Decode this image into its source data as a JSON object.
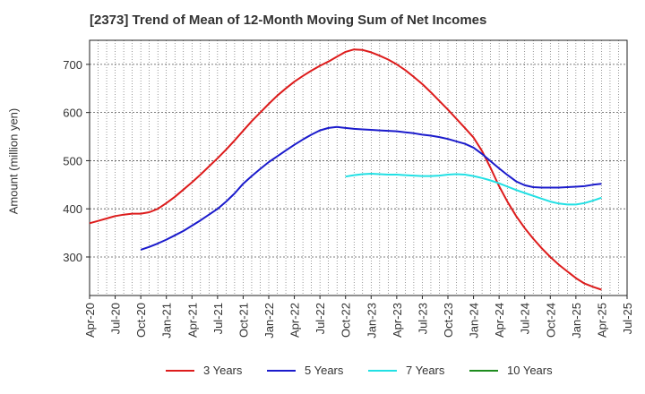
{
  "chart_data": {
    "type": "line",
    "title": "[2373]  Trend of Mean of 12-Month Moving Sum of Net Incomes",
    "ylabel": "Amount (million yen)",
    "xlabel": "",
    "x_ticks": [
      "Apr-20",
      "Jul-20",
      "Oct-20",
      "Jan-21",
      "Apr-21",
      "Jul-21",
      "Oct-21",
      "Jan-22",
      "Apr-22",
      "Jul-22",
      "Oct-22",
      "Jan-23",
      "Apr-23",
      "Jul-23",
      "Oct-23",
      "Jan-24",
      "Apr-24",
      "Jul-24",
      "Oct-24",
      "Jan-25",
      "Apr-25",
      "Jul-25"
    ],
    "y_ticks": [
      300,
      400,
      500,
      600,
      700
    ],
    "ylim": [
      220,
      750
    ],
    "xlim": [
      "Apr-20",
      "Jul-25"
    ],
    "grid": true,
    "legend_position": "bottom",
    "series": [
      {
        "name": "3 Years",
        "color": "#dd1c1c",
        "x": [
          "Apr-20",
          "May-20",
          "Jun-20",
          "Jul-20",
          "Aug-20",
          "Sep-20",
          "Oct-20",
          "Nov-20",
          "Dec-20",
          "Jan-21",
          "Feb-21",
          "Mar-21",
          "Apr-21",
          "May-21",
          "Jun-21",
          "Jul-21",
          "Aug-21",
          "Sep-21",
          "Oct-21",
          "Nov-21",
          "Dec-21",
          "Jan-22",
          "Feb-22",
          "Mar-22",
          "Apr-22",
          "May-22",
          "Jun-22",
          "Jul-22",
          "Aug-22",
          "Sep-22",
          "Oct-22",
          "Nov-22",
          "Dec-22",
          "Jan-23",
          "Feb-23",
          "Mar-23",
          "Apr-23",
          "May-23",
          "Jun-23",
          "Jul-23",
          "Aug-23",
          "Sep-23",
          "Oct-23",
          "Nov-23",
          "Dec-23",
          "Jan-24",
          "Feb-24",
          "Mar-24",
          "Apr-24",
          "May-24",
          "Jun-24",
          "Jul-24",
          "Aug-24",
          "Sep-24",
          "Oct-24",
          "Nov-24",
          "Dec-24",
          "Jan-25",
          "Feb-25",
          "Mar-25",
          "Apr-25"
        ],
        "values": [
          370,
          375,
          380,
          385,
          388,
          390,
          390,
          393,
          400,
          412,
          425,
          440,
          455,
          471,
          488,
          505,
          523,
          542,
          562,
          582,
          600,
          618,
          635,
          650,
          664,
          676,
          687,
          697,
          706,
          716,
          726,
          731,
          730,
          725,
          718,
          710,
          700,
          688,
          674,
          659,
          642,
          624,
          606,
          587,
          568,
          548,
          520,
          485,
          447,
          414,
          385,
          360,
          338,
          318,
          300,
          284,
          270,
          256,
          245,
          238,
          232
        ]
      },
      {
        "name": "5 Years",
        "color": "#1b1bcc",
        "x": [
          "Oct-20",
          "Nov-20",
          "Dec-20",
          "Jan-21",
          "Feb-21",
          "Mar-21",
          "Apr-21",
          "May-21",
          "Jun-21",
          "Jul-21",
          "Aug-21",
          "Sep-21",
          "Oct-21",
          "Nov-21",
          "Dec-21",
          "Jan-22",
          "Feb-22",
          "Mar-22",
          "Apr-22",
          "May-22",
          "Jun-22",
          "Jul-22",
          "Aug-22",
          "Sep-22",
          "Oct-22",
          "Nov-22",
          "Dec-22",
          "Jan-23",
          "Feb-23",
          "Mar-23",
          "Apr-23",
          "May-23",
          "Jun-23",
          "Jul-23",
          "Aug-23",
          "Sep-23",
          "Oct-23",
          "Nov-23",
          "Dec-23",
          "Jan-24",
          "Feb-24",
          "Mar-24",
          "Apr-24",
          "May-24",
          "Jun-24",
          "Jul-24",
          "Aug-24",
          "Sep-24",
          "Oct-24",
          "Nov-24",
          "Dec-24",
          "Jan-25",
          "Feb-25",
          "Mar-25",
          "Apr-25"
        ],
        "values": [
          315,
          321,
          328,
          336,
          345,
          354,
          365,
          376,
          388,
          400,
          415,
          432,
          452,
          468,
          483,
          497,
          509,
          521,
          533,
          544,
          554,
          563,
          568,
          570,
          568,
          566,
          565,
          564,
          563,
          562,
          561,
          559,
          557,
          554,
          552,
          549,
          545,
          540,
          535,
          527,
          514,
          499,
          484,
          470,
          457,
          449,
          445,
          444,
          444,
          444,
          445,
          446,
          447,
          450,
          452
        ]
      },
      {
        "name": "7 Years",
        "color": "#22e0e4",
        "x": [
          "Oct-22",
          "Nov-22",
          "Dec-22",
          "Jan-23",
          "Feb-23",
          "Mar-23",
          "Apr-23",
          "May-23",
          "Jun-23",
          "Jul-23",
          "Aug-23",
          "Sep-23",
          "Oct-23",
          "Nov-23",
          "Dec-23",
          "Jan-24",
          "Feb-24",
          "Mar-24",
          "Apr-24",
          "May-24",
          "Jun-24",
          "Jul-24",
          "Aug-24",
          "Sep-24",
          "Oct-24",
          "Nov-24",
          "Dec-24",
          "Jan-25",
          "Feb-25",
          "Mar-25",
          "Apr-25"
        ],
        "values": [
          467,
          470,
          472,
          473,
          472,
          471,
          471,
          470,
          469,
          468,
          468,
          469,
          471,
          472,
          471,
          468,
          464,
          459,
          453,
          446,
          439,
          433,
          427,
          421,
          415,
          411,
          409,
          409,
          412,
          417,
          423
        ]
      },
      {
        "name": "10 Years",
        "color": "#1e8c1e",
        "x": [],
        "values": []
      }
    ]
  }
}
